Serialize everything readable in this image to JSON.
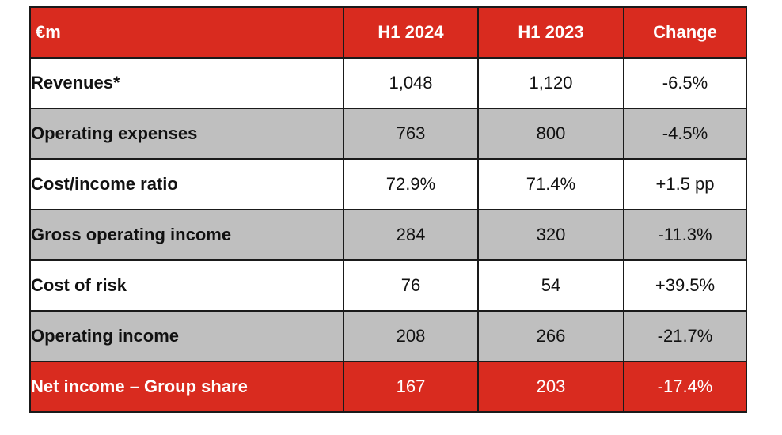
{
  "table": {
    "header": {
      "label": "€m",
      "col1": "H1 2024",
      "col2": "H1 2023",
      "col3": "Change"
    },
    "rows": [
      {
        "label": "Revenues*",
        "h1_2024": "1,048",
        "h1_2023": "1,120",
        "change": "-6.5%"
      },
      {
        "label": "Operating expenses",
        "h1_2024": "763",
        "h1_2023": "800",
        "change": "-4.5%"
      },
      {
        "label": "Cost/income ratio",
        "h1_2024": "72.9%",
        "h1_2023": "71.4%",
        "change": "+1.5 pp"
      },
      {
        "label": "Gross operating income",
        "h1_2024": "284",
        "h1_2023": "320",
        "change": "-11.3%"
      },
      {
        "label": "Cost of risk",
        "h1_2024": "76",
        "h1_2023": "54",
        "change": "+39.5%"
      },
      {
        "label": "Operating income",
        "h1_2024": "208",
        "h1_2023": "266",
        "change": "-21.7%"
      },
      {
        "label": "Net income – Group share",
        "h1_2024": "167",
        "h1_2023": "203",
        "change": "-17.4%"
      }
    ]
  },
  "colors": {
    "header_bg": "#d92b1f",
    "shaded_row_bg": "#bfbfbf",
    "plain_row_bg": "#ffffff"
  }
}
